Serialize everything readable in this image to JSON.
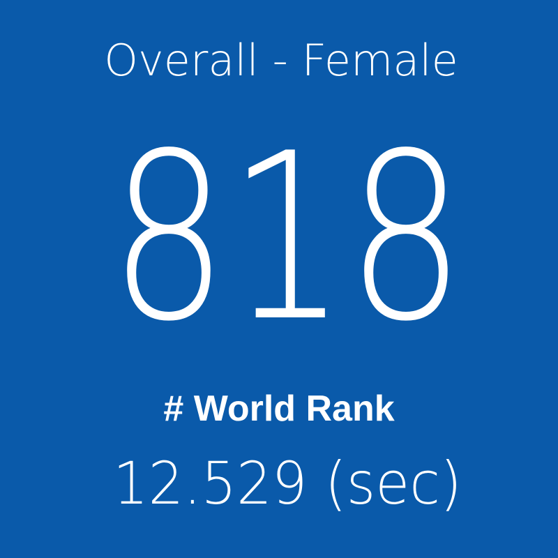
{
  "tile": {
    "title": "Overall - Female",
    "rank": "818",
    "rank_label": "# World Rank",
    "time": "12.529 (sec)"
  }
}
